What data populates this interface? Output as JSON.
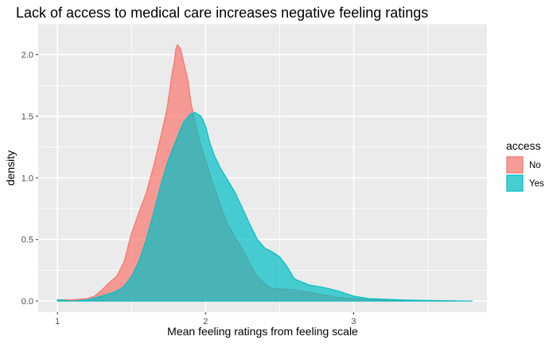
{
  "chart_data": {
    "type": "area",
    "title": "Lack of access to medical care increases negative feeling ratings",
    "xlabel": "Mean feeling ratings from feeling scale",
    "ylabel": "density",
    "xlim": [
      0.87,
      3.9
    ],
    "ylim": [
      -0.09,
      2.25
    ],
    "x_ticks": [
      1,
      2,
      3
    ],
    "x_tick_labels": [
      "1",
      "2",
      "3"
    ],
    "y_ticks": [
      0.0,
      0.5,
      1.0,
      1.5,
      2.0
    ],
    "y_tick_labels": [
      "0.0",
      "0.5",
      "1.0",
      "1.5",
      "2.0"
    ],
    "grid": true,
    "legend": {
      "title": "access",
      "position": "right"
    },
    "series": [
      {
        "name": "No",
        "color": "#F8766D",
        "points": [
          [
            1.0,
            0.01
          ],
          [
            1.1,
            0.01
          ],
          [
            1.2,
            0.02
          ],
          [
            1.25,
            0.04
          ],
          [
            1.3,
            0.09
          ],
          [
            1.35,
            0.15
          ],
          [
            1.4,
            0.2
          ],
          [
            1.45,
            0.32
          ],
          [
            1.5,
            0.55
          ],
          [
            1.55,
            0.72
          ],
          [
            1.6,
            0.88
          ],
          [
            1.65,
            1.1
          ],
          [
            1.7,
            1.35
          ],
          [
            1.74,
            1.56
          ],
          [
            1.77,
            1.82
          ],
          [
            1.79,
            1.95
          ],
          [
            1.8,
            2.05
          ],
          [
            1.81,
            2.08
          ],
          [
            1.83,
            2.05
          ],
          [
            1.85,
            1.95
          ],
          [
            1.88,
            1.8
          ],
          [
            1.9,
            1.62
          ],
          [
            1.93,
            1.45
          ],
          [
            1.96,
            1.3
          ],
          [
            2.0,
            1.15
          ],
          [
            2.05,
            0.95
          ],
          [
            2.1,
            0.78
          ],
          [
            2.15,
            0.62
          ],
          [
            2.2,
            0.52
          ],
          [
            2.25,
            0.42
          ],
          [
            2.3,
            0.3
          ],
          [
            2.35,
            0.2
          ],
          [
            2.4,
            0.14
          ],
          [
            2.45,
            0.1
          ],
          [
            2.5,
            0.1
          ],
          [
            2.6,
            0.09
          ],
          [
            2.7,
            0.07
          ],
          [
            2.8,
            0.05
          ],
          [
            2.9,
            0.03
          ],
          [
            3.0,
            0.02
          ],
          [
            3.1,
            0.01
          ],
          [
            3.3,
            0.005
          ],
          [
            3.5,
            0.002
          ],
          [
            3.7,
            0.0
          ]
        ]
      },
      {
        "name": "Yes",
        "color": "#00BFC4",
        "points": [
          [
            1.0,
            0.01
          ],
          [
            1.1,
            0.0
          ],
          [
            1.2,
            0.01
          ],
          [
            1.3,
            0.04
          ],
          [
            1.4,
            0.08
          ],
          [
            1.45,
            0.12
          ],
          [
            1.5,
            0.2
          ],
          [
            1.55,
            0.32
          ],
          [
            1.6,
            0.5
          ],
          [
            1.65,
            0.72
          ],
          [
            1.7,
            0.95
          ],
          [
            1.75,
            1.15
          ],
          [
            1.8,
            1.3
          ],
          [
            1.85,
            1.45
          ],
          [
            1.9,
            1.52
          ],
          [
            1.93,
            1.53
          ],
          [
            1.97,
            1.5
          ],
          [
            2.0,
            1.42
          ],
          [
            2.03,
            1.28
          ],
          [
            2.06,
            1.18
          ],
          [
            2.1,
            1.08
          ],
          [
            2.15,
            0.98
          ],
          [
            2.2,
            0.88
          ],
          [
            2.25,
            0.75
          ],
          [
            2.3,
            0.62
          ],
          [
            2.35,
            0.5
          ],
          [
            2.4,
            0.43
          ],
          [
            2.45,
            0.4
          ],
          [
            2.5,
            0.36
          ],
          [
            2.55,
            0.28
          ],
          [
            2.6,
            0.18
          ],
          [
            2.7,
            0.13
          ],
          [
            2.8,
            0.11
          ],
          [
            2.9,
            0.08
          ],
          [
            3.0,
            0.04
          ],
          [
            3.1,
            0.02
          ],
          [
            3.3,
            0.01
          ],
          [
            3.5,
            0.005
          ],
          [
            3.8,
            0.0
          ]
        ]
      }
    ]
  }
}
